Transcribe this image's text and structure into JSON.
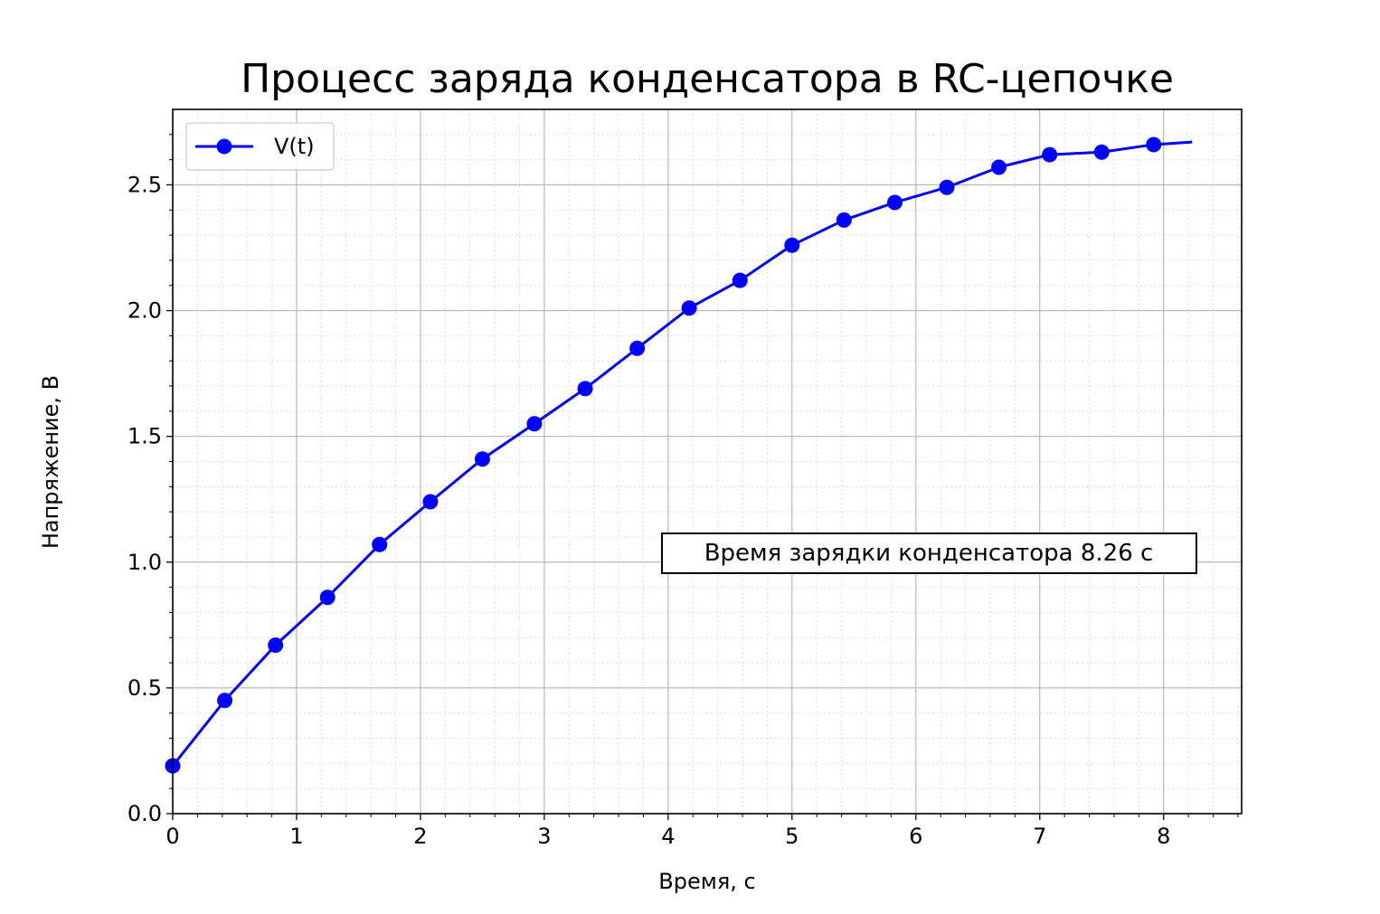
{
  "chart_data": {
    "type": "line",
    "title": "Процесс заряда конденсатора в RC-цепочке",
    "xlabel": "Время, с",
    "ylabel": "Напряжение, В",
    "xlim": [
      0,
      8.63
    ],
    "ylim": [
      0,
      2.8
    ],
    "xticks": [
      "0",
      "1",
      "2",
      "3",
      "4",
      "5",
      "6",
      "7",
      "8"
    ],
    "yticks": [
      "0.0",
      "0.5",
      "1.0",
      "1.5",
      "2.0",
      "2.5"
    ],
    "grid": {
      "major": true,
      "minor": true
    },
    "legend_position": "top-left",
    "annotation": "Время зарядки конденсатора 8.26 с",
    "series": [
      {
        "name": "V(t)",
        "color": "#0000ff",
        "line_x": [
          0,
          0.42,
          0.83,
          1.25,
          1.67,
          2.08,
          2.5,
          2.92,
          3.33,
          3.75,
          4.17,
          4.58,
          5.0,
          5.42,
          5.83,
          6.25,
          6.67,
          7.08,
          7.5,
          7.92,
          8.23
        ],
        "line_y": [
          0.19,
          0.45,
          0.67,
          0.86,
          1.07,
          1.24,
          1.41,
          1.55,
          1.69,
          1.85,
          2.01,
          2.12,
          2.26,
          2.36,
          2.43,
          2.49,
          2.57,
          2.62,
          2.63,
          2.66,
          2.67
        ],
        "marker_x": [
          0,
          0.42,
          0.83,
          1.25,
          1.67,
          2.08,
          2.5,
          2.92,
          3.33,
          3.75,
          4.17,
          4.58,
          5.0,
          5.42,
          5.83,
          6.25,
          6.67,
          7.08,
          7.5,
          7.92
        ],
        "marker_y": [
          0.19,
          0.45,
          0.67,
          0.86,
          1.07,
          1.24,
          1.41,
          1.55,
          1.69,
          1.85,
          2.01,
          2.12,
          2.26,
          2.36,
          2.43,
          2.49,
          2.57,
          2.62,
          2.63,
          2.66
        ]
      }
    ]
  }
}
